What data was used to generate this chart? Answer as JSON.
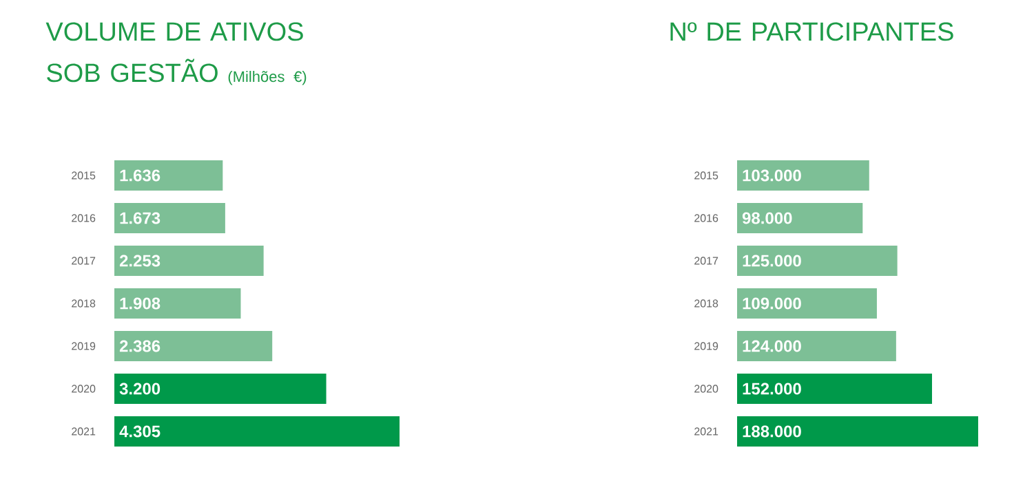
{
  "chart_data": [
    {
      "type": "bar",
      "orientation": "horizontal",
      "title": "VOLUME DE ATIVOS SOB GESTÃO",
      "subtitle": "(Milhões €)",
      "categories": [
        "2015",
        "2016",
        "2017",
        "2018",
        "2019",
        "2020",
        "2021"
      ],
      "values": [
        1636,
        1673,
        2253,
        1908,
        2386,
        3200,
        4305
      ],
      "value_labels": [
        "1.636",
        "1.673",
        "2.253",
        "1.908",
        "2.386",
        "3.200",
        "4.305"
      ],
      "colors": [
        "#7dbf96",
        "#7dbf96",
        "#7dbf96",
        "#7dbf96",
        "#7dbf96",
        "#00994a",
        "#00994a"
      ]
    },
    {
      "type": "bar",
      "orientation": "horizontal",
      "title": "Nº DE PARTICIPANTES",
      "categories": [
        "2015",
        "2016",
        "2017",
        "2018",
        "2019",
        "2020",
        "2021"
      ],
      "values": [
        103000,
        98000,
        125000,
        109000,
        124000,
        152000,
        188000
      ],
      "value_labels": [
        "103.000",
        "98.000",
        "125.000",
        "109.000",
        "124.000",
        "152.000",
        "188.000"
      ],
      "colors": [
        "#7dbf96",
        "#7dbf96",
        "#7dbf96",
        "#7dbf96",
        "#7dbf96",
        "#00994a",
        "#00994a"
      ]
    }
  ]
}
